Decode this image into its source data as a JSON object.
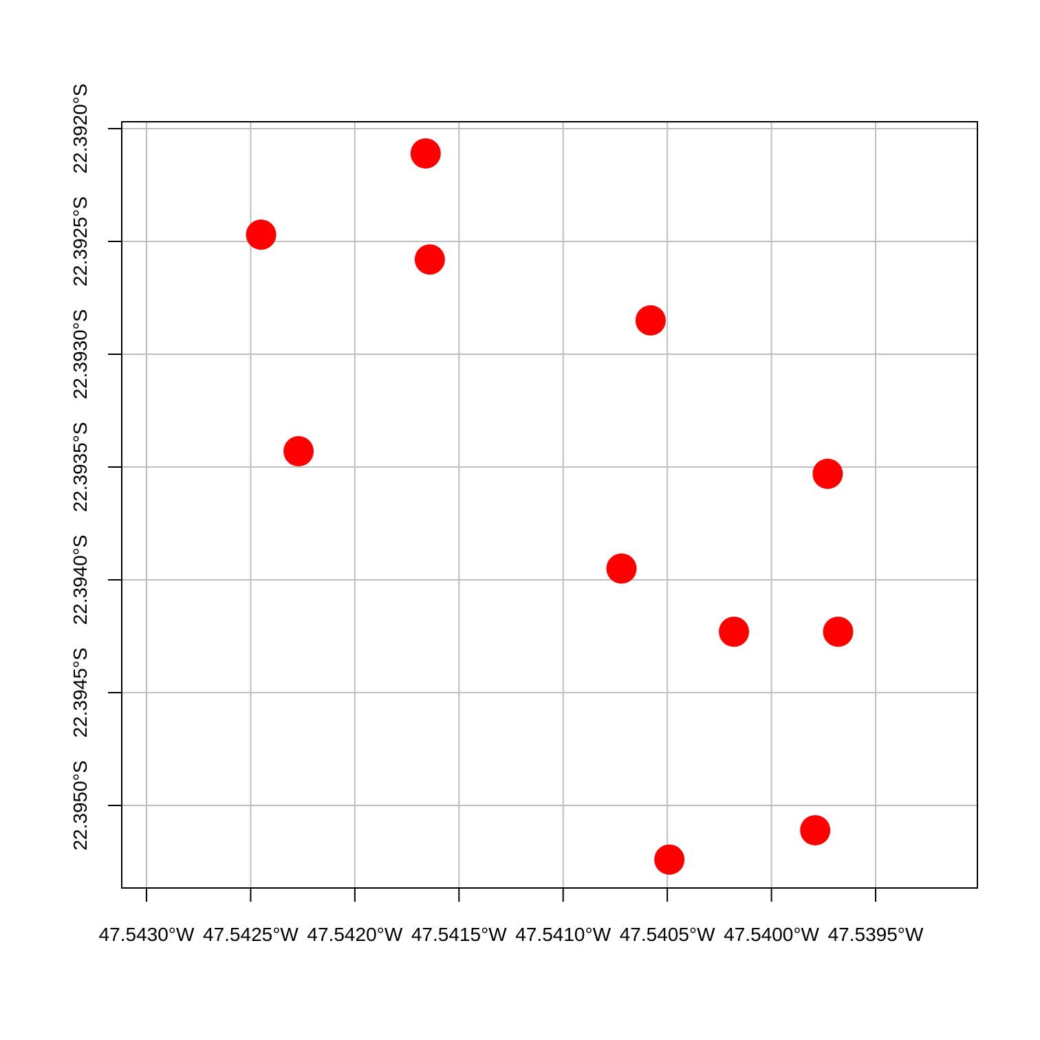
{
  "chart_data": {
    "type": "scatter",
    "title": "",
    "xlabel": "",
    "ylabel": "",
    "x_unit": "longitude (degrees, negative = W)",
    "y_unit": "latitude (degrees, negative = S)",
    "xlim": [
      -47.5431,
      -47.539
    ],
    "ylim": [
      -22.39533,
      -22.39197
    ],
    "grid": true,
    "marker_color": "#ff0000",
    "grid_color": "#bebebe",
    "x_ticks": [
      {
        "value": -47.543,
        "label": "47.5430°W"
      },
      {
        "value": -47.5425,
        "label": "47.5425°W"
      },
      {
        "value": -47.542,
        "label": "47.5420°W"
      },
      {
        "value": -47.5415,
        "label": "47.5415°W"
      },
      {
        "value": -47.541,
        "label": "47.5410°W"
      },
      {
        "value": -47.5405,
        "label": "47.5405°W"
      },
      {
        "value": -47.54,
        "label": "47.5400°W"
      },
      {
        "value": -47.5395,
        "label": "47.5395°W"
      }
    ],
    "y_ticks": [
      {
        "value": -22.392,
        "label": "22.3920°S"
      },
      {
        "value": -22.3925,
        "label": "22.3925°S"
      },
      {
        "value": -22.393,
        "label": "22.3930°S"
      },
      {
        "value": -22.3935,
        "label": "22.3935°S"
      },
      {
        "value": -22.394,
        "label": "22.3940°S"
      },
      {
        "value": -22.3945,
        "label": "22.3945°S"
      },
      {
        "value": -22.395,
        "label": "22.3950°S"
      }
    ],
    "points": [
      {
        "x": -47.54166,
        "y": -22.39211
      },
      {
        "x": -47.54245,
        "y": -22.39247
      },
      {
        "x": -47.54164,
        "y": -22.39258
      },
      {
        "x": -47.54058,
        "y": -22.39285
      },
      {
        "x": -47.54227,
        "y": -22.39343
      },
      {
        "x": -47.53973,
        "y": -22.39353
      },
      {
        "x": -47.54072,
        "y": -22.39395
      },
      {
        "x": -47.54018,
        "y": -22.39423
      },
      {
        "x": -47.53968,
        "y": -22.39423
      },
      {
        "x": -47.53979,
        "y": -22.39511
      },
      {
        "x": -47.54049,
        "y": -22.39524
      }
    ]
  }
}
